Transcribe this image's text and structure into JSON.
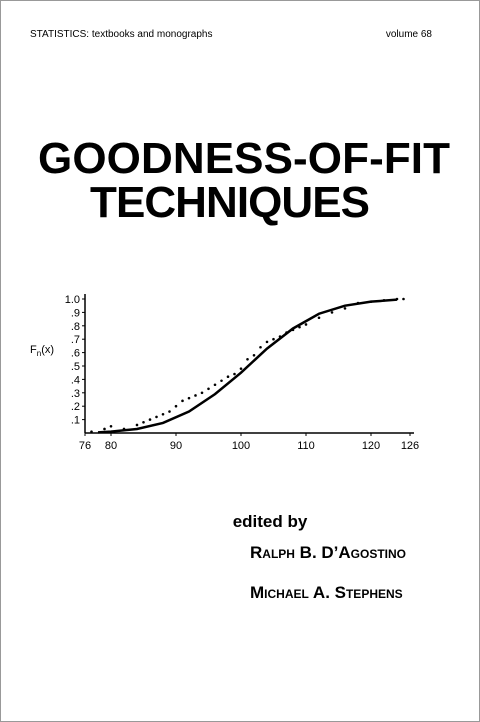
{
  "header": {
    "series": "STATISTICS: textbooks and monographs",
    "volume": "volume 68"
  },
  "title": [
    "GOODNESS-OF-FIT",
    "TECHNIQUES"
  ],
  "chart_data": {
    "type": "line",
    "y_label": {
      "base": "F",
      "sub": "n",
      "rest": "(x)"
    },
    "xlim": [
      76,
      126
    ],
    "xticks": [
      76,
      80,
      90,
      100,
      110,
      120,
      126
    ],
    "ylim": [
      0,
      1
    ],
    "yticks": [
      {
        "value": 0.1,
        "label": ".1"
      },
      {
        "value": 0.2,
        "label": ".2"
      },
      {
        "value": 0.3,
        "label": ".3"
      },
      {
        "value": 0.4,
        "label": ".4"
      },
      {
        "value": 0.5,
        "label": ".5"
      },
      {
        "value": 0.6,
        "label": ".6"
      },
      {
        "value": 0.7,
        "label": ".7"
      },
      {
        "value": 0.8,
        "label": ".8"
      },
      {
        "value": 0.9,
        "label": ".9"
      },
      {
        "value": 1.0,
        "label": "1.0"
      }
    ],
    "x": [
      78,
      80,
      84,
      88,
      92,
      96,
      100,
      104,
      108,
      112,
      116,
      120,
      124
    ],
    "values": [
      0.005,
      0.01,
      0.03,
      0.075,
      0.16,
      0.29,
      0.45,
      0.63,
      0.78,
      0.89,
      0.95,
      0.98,
      0.995
    ],
    "color": "#000000",
    "points": {
      "x": [
        77,
        79,
        80,
        82,
        84,
        85,
        86,
        87,
        88,
        89,
        90,
        91,
        92,
        93,
        94,
        95,
        96,
        97,
        98,
        99,
        100,
        101,
        102,
        103,
        104,
        105,
        106,
        107,
        108,
        109,
        110,
        112,
        114,
        116,
        118,
        120,
        122,
        124,
        125
      ],
      "values": [
        0.01,
        0.03,
        0.05,
        0.03,
        0.06,
        0.08,
        0.1,
        0.12,
        0.14,
        0.16,
        0.2,
        0.24,
        0.26,
        0.28,
        0.3,
        0.33,
        0.36,
        0.39,
        0.42,
        0.44,
        0.48,
        0.55,
        0.58,
        0.64,
        0.68,
        0.7,
        0.72,
        0.75,
        0.77,
        0.79,
        0.81,
        0.86,
        0.9,
        0.93,
        0.97,
        0.98,
        0.99,
        1.0,
        1.0
      ]
    }
  },
  "editors": {
    "label": "edited by",
    "names": [
      "Ralph B. D’Agostino",
      "Michael A. Stephens"
    ]
  }
}
